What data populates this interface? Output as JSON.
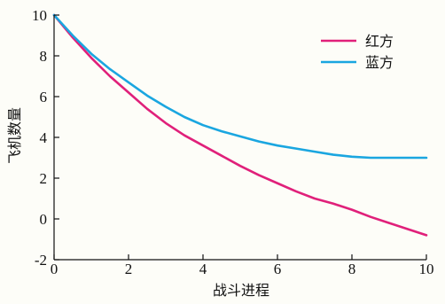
{
  "chart_data": {
    "type": "line",
    "xlabel": "战斗进程",
    "ylabel": "飞机数量",
    "xlim": [
      0,
      10
    ],
    "ylim": [
      -2,
      10
    ],
    "xticks": [
      0,
      2,
      4,
      6,
      8,
      10
    ],
    "yticks": [
      -2,
      0,
      2,
      4,
      6,
      8,
      10
    ],
    "grid": false,
    "legend_position": "top-right",
    "series": [
      {
        "name": "红方",
        "color": "#e0207a",
        "x": [
          0,
          0.5,
          1,
          1.5,
          2,
          2.5,
          3,
          3.5,
          4,
          4.5,
          5,
          5.5,
          6,
          6.5,
          7,
          7.5,
          8,
          8.5,
          9,
          9.5,
          10
        ],
        "y": [
          10,
          8.9,
          7.9,
          7.0,
          6.2,
          5.4,
          4.7,
          4.1,
          3.6,
          3.1,
          2.6,
          2.15,
          1.75,
          1.35,
          1.0,
          0.75,
          0.45,
          0.1,
          -0.2,
          -0.5,
          -0.8
        ]
      },
      {
        "name": "蓝方",
        "color": "#1aa6e0",
        "x": [
          0,
          0.5,
          1,
          1.5,
          2,
          2.5,
          3,
          3.5,
          4,
          4.5,
          5,
          5.5,
          6,
          6.5,
          7,
          7.5,
          8,
          8.5,
          9,
          9.5,
          10
        ],
        "y": [
          10,
          9.0,
          8.1,
          7.35,
          6.7,
          6.05,
          5.5,
          5.0,
          4.6,
          4.3,
          4.05,
          3.8,
          3.6,
          3.45,
          3.3,
          3.15,
          3.05,
          3.0,
          3.0,
          3.0,
          3.0
        ]
      }
    ]
  }
}
